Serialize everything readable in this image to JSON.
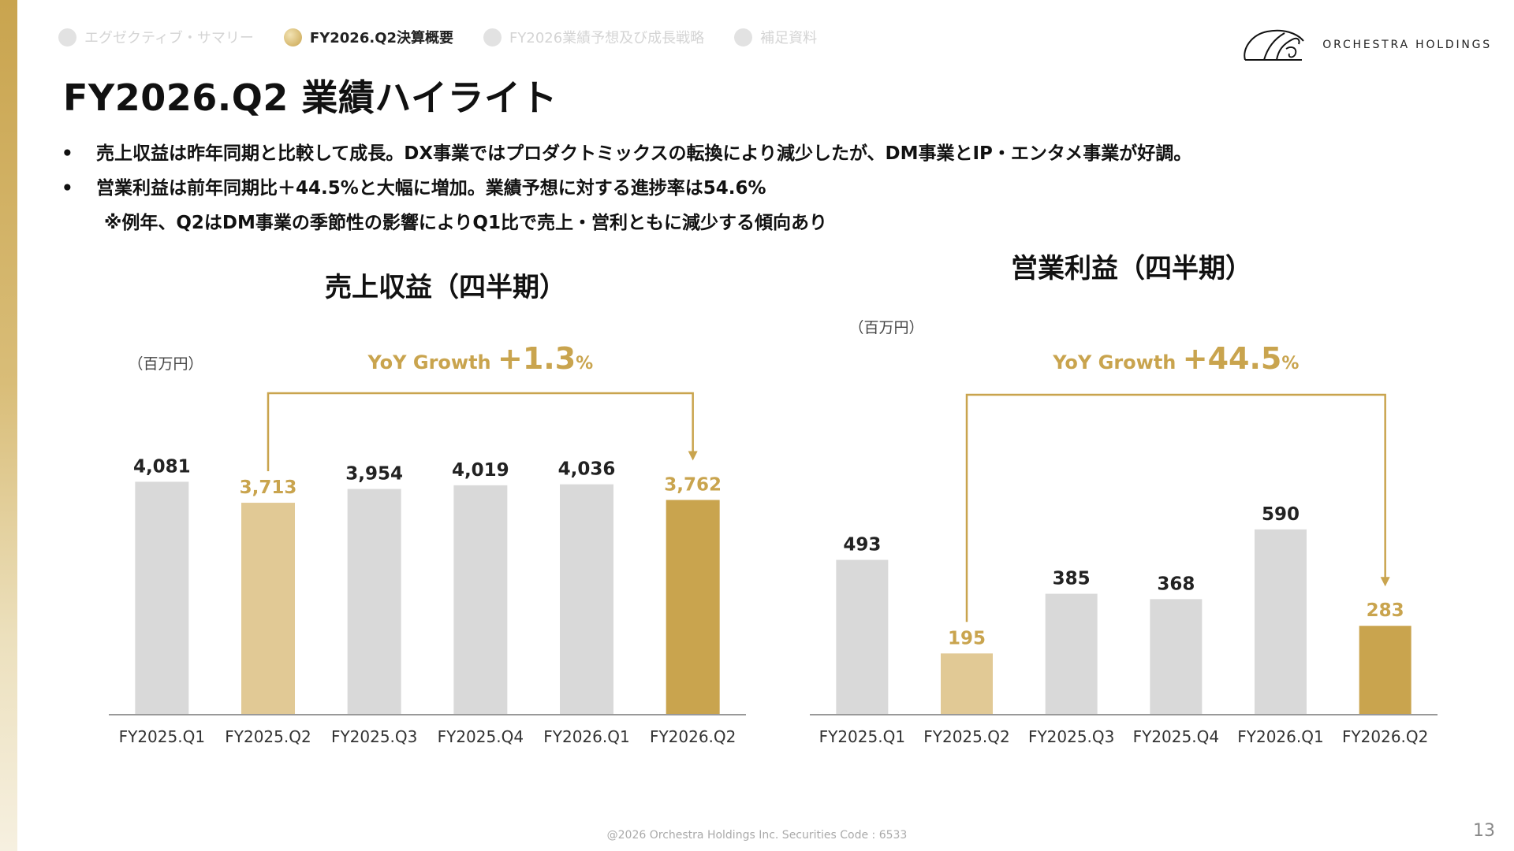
{
  "nav": {
    "items": [
      {
        "label": "エグゼクティブ・サマリー",
        "active": false
      },
      {
        "label": "FY2026.Q2決算概要",
        "active": true
      },
      {
        "label": "FY2026業績予想及び成長戦略",
        "active": false
      },
      {
        "label": "補足資料",
        "active": false
      }
    ]
  },
  "logo": {
    "text": "ORCHESTRA HOLDINGS"
  },
  "title": "FY2026.Q2 業績ハイライト",
  "bullets": {
    "b1": "売上収益は昨年同期と比較して成長。DX事業ではプロダクトミックスの転換により減少したが、DM事業とIP・エンタメ事業が好調。",
    "b2": "営業利益は前年同期比＋44.5%と大幅に増加。業績予想に対する進捗率は54.6%",
    "note": "※例年、Q2はDM事業の季節性の影響によりQ1比で売上・営利ともに減少する傾向あり"
  },
  "colors": {
    "gold": "#c9a44e",
    "light_gold": "#e1c995",
    "gray_bar": "#d9d9d9",
    "axis": "#999999"
  },
  "chart_data": [
    {
      "type": "bar",
      "title": "売上収益（四半期）",
      "unit": "（百万円）",
      "categories": [
        "FY2025.Q1",
        "FY2025.Q2",
        "FY2025.Q3",
        "FY2025.Q4",
        "FY2026.Q1",
        "FY2026.Q2"
      ],
      "values": [
        4081,
        3713,
        3954,
        4019,
        4036,
        3762
      ],
      "value_labels": [
        "4,081",
        "3,713",
        "3,954",
        "4,019",
        "4,036",
        "3,762"
      ],
      "bar_colors": [
        "#d9d9d9",
        "#e1c995",
        "#d9d9d9",
        "#d9d9d9",
        "#d9d9d9",
        "#c9a44e"
      ],
      "label_colors": [
        "#222222",
        "#c9a44e",
        "#222222",
        "#222222",
        "#222222",
        "#c9a44e"
      ],
      "ylim": [
        0,
        4100
      ],
      "yoy": {
        "prefix": "YoY Growth",
        "sign": "+",
        "value": "1.3",
        "suffix": "%",
        "from_index": 1,
        "to_index": 5
      }
    },
    {
      "type": "bar",
      "title": "営業利益（四半期）",
      "unit": "（百万円）",
      "categories": [
        "FY2025.Q1",
        "FY2025.Q2",
        "FY2025.Q3",
        "FY2025.Q4",
        "FY2026.Q1",
        "FY2026.Q2"
      ],
      "values": [
        493,
        195,
        385,
        368,
        590,
        283
      ],
      "value_labels": [
        "493",
        "195",
        "385",
        "368",
        "590",
        "283"
      ],
      "bar_colors": [
        "#d9d9d9",
        "#e1c995",
        "#d9d9d9",
        "#d9d9d9",
        "#d9d9d9",
        "#c9a44e"
      ],
      "label_colors": [
        "#222222",
        "#c9a44e",
        "#222222",
        "#222222",
        "#222222",
        "#c9a44e"
      ],
      "ylim": [
        0,
        670
      ],
      "yoy": {
        "prefix": "YoY Growth",
        "sign": "+",
        "value": "44.5",
        "suffix": "%",
        "from_index": 1,
        "to_index": 5
      }
    }
  ],
  "footer": "@2026 Orchestra Holdings Inc.  Securities Code : 6533",
  "page_number": "13"
}
